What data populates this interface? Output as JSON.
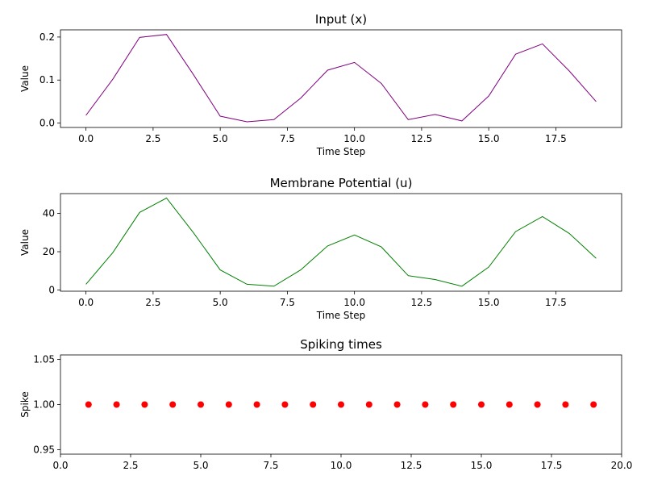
{
  "chart_data": [
    {
      "type": "line",
      "title": "Input (x)",
      "xlabel": "Time Step",
      "ylabel": "Value",
      "color": "#800080",
      "xlim": [
        -0.95,
        19.95
      ],
      "ylim": [
        -0.0102,
        0.2167
      ],
      "xticks": [
        0.0,
        2.5,
        5.0,
        7.5,
        10.0,
        12.5,
        15.0,
        17.5
      ],
      "xtick_labels": [
        "0.0",
        "2.5",
        "5.0",
        "7.5",
        "10.0",
        "12.5",
        "15.0",
        "17.5"
      ],
      "yticks": [
        0.0,
        0.1,
        0.2
      ],
      "ytick_labels": [
        "0.0",
        "0.1",
        "0.2"
      ],
      "series": [
        {
          "x": [
            0,
            1,
            2,
            3,
            4,
            5,
            6,
            7,
            8,
            9,
            10,
            11,
            12,
            13,
            14,
            15,
            16,
            17,
            18,
            19
          ],
          "values": [
            0.018,
            0.102,
            0.199,
            0.206,
            0.113,
            0.016,
            0.003,
            0.008,
            0.058,
            0.123,
            0.141,
            0.092,
            0.008,
            0.02,
            0.005,
            0.063,
            0.16,
            0.184,
            0.121,
            0.05
          ]
        }
      ]
    },
    {
      "type": "line",
      "title": "Membrane Potential (u)",
      "xlabel": "Time Step",
      "ylabel": "Value",
      "color": "#008000",
      "xlim": [
        -0.95,
        19.95
      ],
      "ylim": [
        -0.6,
        50.3
      ],
      "xticks": [
        0.0,
        2.5,
        5.0,
        7.5,
        10.0,
        12.5,
        15.0,
        17.5
      ],
      "xtick_labels": [
        "0.0",
        "2.5",
        "5.0",
        "7.5",
        "10.0",
        "12.5",
        "15.0",
        "17.5"
      ],
      "yticks": [
        0,
        20,
        40
      ],
      "ytick_labels": [
        "0",
        "20",
        "40"
      ],
      "series": [
        {
          "x": [
            0,
            1,
            2,
            3,
            4,
            5,
            6,
            7,
            8,
            9,
            10,
            11,
            12,
            13,
            14,
            15,
            16,
            17,
            18,
            19
          ],
          "values": [
            3.0,
            19.5,
            40.5,
            48.0,
            30.0,
            10.5,
            3.0,
            2.0,
            10.5,
            23.0,
            28.7,
            22.5,
            7.5,
            5.5,
            2.0,
            12.0,
            30.5,
            38.3,
            29.5,
            16.5
          ]
        }
      ]
    },
    {
      "type": "scatter",
      "title": "Spiking times",
      "xlabel": "",
      "ylabel": "Spike",
      "color": "#ff0000",
      "xlim": [
        0,
        20
      ],
      "ylim": [
        0.945,
        1.055
      ],
      "xticks": [
        0.0,
        2.5,
        5.0,
        7.5,
        10.0,
        12.5,
        15.0,
        17.5,
        20.0
      ],
      "xtick_labels": [
        "0.0",
        "2.5",
        "5.0",
        "7.5",
        "10.0",
        "12.5",
        "15.0",
        "17.5",
        "20.0"
      ],
      "yticks": [
        0.95,
        1.0,
        1.05
      ],
      "ytick_labels": [
        "0.95",
        "1.00",
        "1.05"
      ],
      "series": [
        {
          "x": [
            1,
            2,
            3,
            4,
            5,
            6,
            7,
            8,
            9,
            10,
            11,
            12,
            13,
            14,
            15,
            16,
            17,
            18,
            19
          ],
          "values": [
            1,
            1,
            1,
            1,
            1,
            1,
            1,
            1,
            1,
            1,
            1,
            1,
            1,
            1,
            1,
            1,
            1,
            1,
            1
          ]
        }
      ]
    }
  ]
}
